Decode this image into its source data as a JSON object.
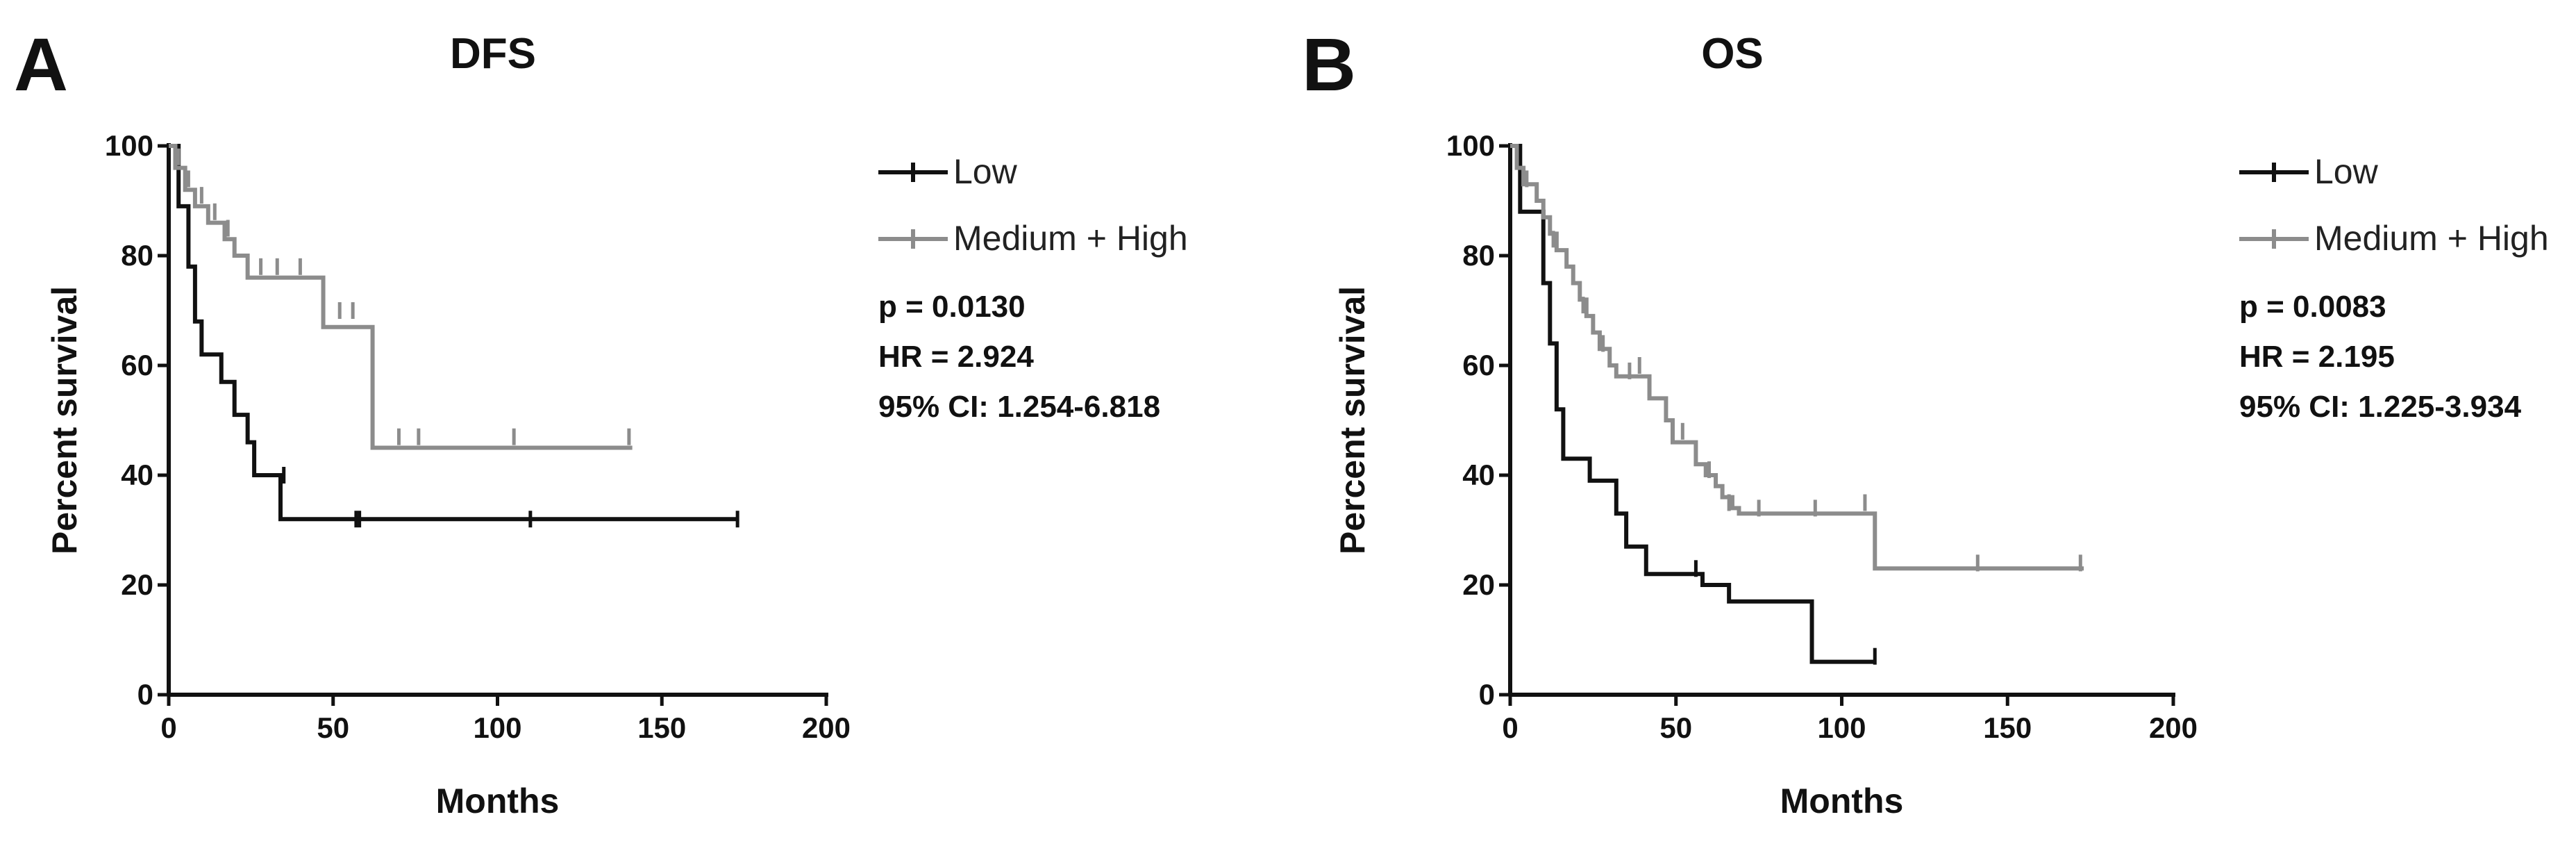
{
  "chart_data": [
    {
      "type": "line",
      "panel": "A",
      "title": "DFS",
      "xlabel": "Months",
      "ylabel": "Percent survival",
      "xlim": [
        0,
        200
      ],
      "ylim": [
        0,
        100
      ],
      "xticks": [
        0,
        50,
        100,
        150,
        200
      ],
      "yticks": [
        0,
        20,
        40,
        60,
        80,
        100
      ],
      "legend_position": "right",
      "stats": {
        "p": "p = 0.0130",
        "hr": "HR = 2.924",
        "ci": "95% CI: 1.254-6.818"
      },
      "series": [
        {
          "name": "Low",
          "color": "#111111",
          "steps": [
            [
              0,
              100
            ],
            [
              3,
              89
            ],
            [
              6,
              78
            ],
            [
              8,
              68
            ],
            [
              10,
              62
            ],
            [
              16,
              57
            ],
            [
              20,
              51
            ],
            [
              24,
              46
            ],
            [
              26,
              40
            ],
            [
              34,
              32
            ],
            [
              173,
              32
            ]
          ],
          "censored": [
            [
              35,
              40
            ],
            [
              57,
              32
            ],
            [
              58,
              32
            ],
            [
              110,
              32
            ],
            [
              173,
              32
            ]
          ]
        },
        {
          "name": "Medium + High",
          "color": "#8c8c8c",
          "steps": [
            [
              0,
              100
            ],
            [
              2,
              96
            ],
            [
              5,
              92
            ],
            [
              8,
              89
            ],
            [
              12,
              86
            ],
            [
              17,
              83
            ],
            [
              20,
              80
            ],
            [
              24,
              76
            ],
            [
              45,
              76
            ],
            [
              47,
              67
            ],
            [
              60,
              67
            ],
            [
              62,
              45
            ],
            [
              141,
              45
            ]
          ],
          "censored": [
            [
              3,
              98
            ],
            [
              6,
              94
            ],
            [
              10,
              91
            ],
            [
              14,
              88
            ],
            [
              18,
              85
            ],
            [
              28,
              78
            ],
            [
              33,
              78
            ],
            [
              40,
              78
            ],
            [
              52,
              70
            ],
            [
              56,
              70
            ],
            [
              70,
              47
            ],
            [
              76,
              47
            ],
            [
              105,
              47
            ],
            [
              140,
              47
            ]
          ]
        }
      ]
    },
    {
      "type": "line",
      "panel": "B",
      "title": "OS",
      "xlabel": "Months",
      "ylabel": "Percent survival",
      "xlim": [
        0,
        200
      ],
      "ylim": [
        0,
        100
      ],
      "xticks": [
        0,
        50,
        100,
        150,
        200
      ],
      "yticks": [
        0,
        20,
        40,
        60,
        80,
        100
      ],
      "legend_position": "right",
      "stats": {
        "p": "p = 0.0083",
        "hr": "HR = 2.195",
        "ci": "95% CI: 1.225-3.934"
      },
      "series": [
        {
          "name": "Low",
          "color": "#111111",
          "steps": [
            [
              0,
              100
            ],
            [
              3,
              88
            ],
            [
              10,
              75
            ],
            [
              12,
              64
            ],
            [
              14,
              52
            ],
            [
              16,
              43
            ],
            [
              24,
              39
            ],
            [
              32,
              33
            ],
            [
              35,
              27
            ],
            [
              41,
              22
            ],
            [
              56,
              22
            ],
            [
              58,
              20
            ],
            [
              66,
              17
            ],
            [
              89,
              17
            ],
            [
              91,
              6
            ],
            [
              110,
              6
            ]
          ],
          "censored": [
            [
              56,
              23
            ],
            [
              110,
              7
            ]
          ]
        },
        {
          "name": "Medium + High",
          "color": "#8c8c8c",
          "steps": [
            [
              0,
              100
            ],
            [
              2,
              96
            ],
            [
              4,
              93
            ],
            [
              8,
              90
            ],
            [
              10,
              87
            ],
            [
              12,
              84
            ],
            [
              14,
              81
            ],
            [
              17,
              78
            ],
            [
              19,
              75
            ],
            [
              21,
              72
            ],
            [
              23,
              69
            ],
            [
              25,
              66
            ],
            [
              27,
              63
            ],
            [
              30,
              60
            ],
            [
              32,
              58
            ],
            [
              40,
              58
            ],
            [
              42,
              54
            ],
            [
              47,
              50
            ],
            [
              49,
              46
            ],
            [
              54,
              46
            ],
            [
              56,
              42
            ],
            [
              59,
              40
            ],
            [
              62,
              38
            ],
            [
              64,
              36
            ],
            [
              67,
              34
            ],
            [
              69,
              33
            ],
            [
              109,
              33
            ],
            [
              110,
              23
            ],
            [
              173,
              23
            ]
          ],
          "censored": [
            [
              5,
              94
            ],
            [
              13,
              83
            ],
            [
              22,
              71
            ],
            [
              28,
              64
            ],
            [
              36,
              59
            ],
            [
              39,
              60
            ],
            [
              52,
              48
            ],
            [
              60,
              41
            ],
            [
              66,
              35
            ],
            [
              75,
              34
            ],
            [
              92,
              34
            ],
            [
              107,
              35
            ],
            [
              141,
              24
            ],
            [
              172,
              24
            ]
          ]
        }
      ]
    }
  ]
}
